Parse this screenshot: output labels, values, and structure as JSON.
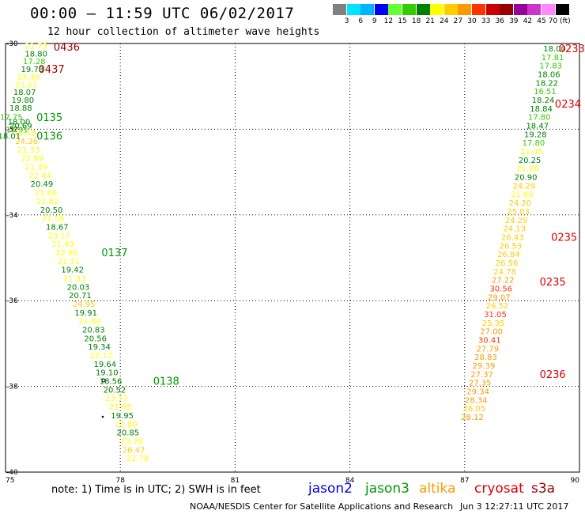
{
  "header": {
    "title": "00:00 – 11:59 UTC 06/02/2017",
    "subtitle": "12 hour collection of altimeter wave heights"
  },
  "colorbar": {
    "labels": [
      "3",
      "6",
      "9",
      "12",
      "15",
      "18",
      "21",
      "24",
      "27",
      "30",
      "33",
      "36",
      "39",
      "42",
      "45",
      "70 (ft)"
    ],
    "colors": [
      "#808080",
      "#00e5ff",
      "#00b3ff",
      "#0000ff",
      "#66ff33",
      "#33cc00",
      "#008000",
      "#ffff00",
      "#ffcc00",
      "#ff9900",
      "#ff3300",
      "#cc0000",
      "#990000",
      "#990099",
      "#cc33cc",
      "#ff88ff",
      "#000000"
    ]
  },
  "footer": {
    "note": "note:  1) Time is in UTC;  2) SWH is in feet",
    "legend": [
      {
        "label": "jason2",
        "color": "#0000dd"
      },
      {
        "label": "jason3",
        "color": "#009900"
      },
      {
        "label": "altika",
        "color": "#ff9900"
      },
      {
        "label": "cryosat",
        "color": "#dd0000"
      },
      {
        "label": "s3a",
        "color": "#990000"
      }
    ],
    "credit_left": "NOAA/NESDIS Center for Satellite Applications and Research",
    "credit_right": "Jun  3 12:27:11 UTC 2017"
  },
  "chart_data": {
    "type": "scatter",
    "x_ticks": [
      "75",
      "78",
      "81",
      "84",
      "87",
      "90"
    ],
    "y_ticks": [
      "-30",
      "-32",
      "-34",
      "-36",
      "-38",
      "-40"
    ],
    "xlim": [
      75,
      90
    ],
    "ylim": [
      -40,
      -30
    ],
    "grid": true,
    "color_scale": {
      "bounds": [
        3,
        6,
        9,
        12,
        15,
        18,
        21,
        24,
        27,
        30,
        33,
        36,
        39,
        42,
        45,
        70
      ],
      "colors": [
        "#808080",
        "#00e5ff",
        "#00b3ff",
        "#0000ff",
        "#66ff33",
        "#33cc00",
        "#008000",
        "#ffff00",
        "#ffcc00",
        "#ff9900",
        "#ff3300",
        "#cc0000",
        "#990000",
        "#990099",
        "#cc33cc",
        "#ff88ff",
        "#000000"
      ]
    },
    "series": [
      {
        "name": "s3a",
        "points": [
          {
            "x": 75.8,
            "y": -30.05,
            "v": 21.73
          },
          {
            "x": 75.8,
            "y": -30.23,
            "v": 18.8
          },
          {
            "x": 75.75,
            "y": -30.41,
            "v": 17.28
          },
          {
            "x": 75.7,
            "y": -30.59,
            "v": 19.73
          },
          {
            "x": 75.6,
            "y": -30.77,
            "v": 23.3
          },
          {
            "x": 75.55,
            "y": -30.95,
            "v": 21.01
          },
          {
            "x": 75.5,
            "y": -31.13,
            "v": 18.07
          },
          {
            "x": 75.45,
            "y": -31.31,
            "v": 19.8
          },
          {
            "x": 75.4,
            "y": -31.49,
            "v": 18.88
          }
        ]
      },
      {
        "name": "jason3-a",
        "points": [
          {
            "x": 75.15,
            "y": -31.71,
            "v": 17.75
          },
          {
            "x": 75.35,
            "y": -31.82,
            "v": 18.0
          },
          {
            "x": 75.4,
            "y": -31.91,
            "v": 20.69
          },
          {
            "x": 75.3,
            "y": -32.0,
            "v": 17.91
          },
          {
            "x": 75.5,
            "y": -32.08,
            "v": 21.59
          },
          {
            "x": 75.1,
            "y": -32.15,
            "v": 18.01
          },
          {
            "x": 75.55,
            "y": -32.27,
            "v": 24.36
          },
          {
            "x": 75.6,
            "y": -32.47,
            "v": 21.33
          },
          {
            "x": 75.7,
            "y": -32.67,
            "v": 22.89
          },
          {
            "x": 75.8,
            "y": -32.87,
            "v": 21.39
          },
          {
            "x": 75.9,
            "y": -33.07,
            "v": 22.44
          },
          {
            "x": 75.95,
            "y": -33.27,
            "v": 20.49
          },
          {
            "x": 76.05,
            "y": -33.47,
            "v": 21.6
          },
          {
            "x": 76.1,
            "y": -33.67,
            "v": 21.62
          },
          {
            "x": 76.2,
            "y": -33.87,
            "v": 20.5
          },
          {
            "x": 76.25,
            "y": -34.07,
            "v": 21.56
          },
          {
            "x": 76.35,
            "y": -34.27,
            "v": 18.67
          },
          {
            "x": 76.4,
            "y": -34.47,
            "v": 23.17
          },
          {
            "x": 76.5,
            "y": -34.67,
            "v": 21.49
          },
          {
            "x": 76.6,
            "y": -34.87,
            "v": 22.9
          },
          {
            "x": 76.65,
            "y": -35.07,
            "v": 21.31
          },
          {
            "x": 76.75,
            "y": -35.27,
            "v": 19.42
          },
          {
            "x": 76.8,
            "y": -35.47,
            "v": 21.33
          },
          {
            "x": 76.9,
            "y": -35.67,
            "v": 20.03
          },
          {
            "x": 76.95,
            "y": -35.87,
            "v": 20.71
          },
          {
            "x": 77.05,
            "y": -36.07,
            "v": 24.95
          },
          {
            "x": 77.1,
            "y": -36.27,
            "v": 19.91
          },
          {
            "x": 77.2,
            "y": -36.47,
            "v": 21.8
          },
          {
            "x": 77.3,
            "y": -36.67,
            "v": 20.83
          },
          {
            "x": 77.35,
            "y": -36.87,
            "v": 20.56
          },
          {
            "x": 77.45,
            "y": -37.07,
            "v": 19.34
          },
          {
            "x": 77.5,
            "y": -37.27,
            "v": 22.17
          },
          {
            "x": 77.6,
            "y": -37.47,
            "v": 19.64
          },
          {
            "x": 77.65,
            "y": -37.67,
            "v": 19.1
          },
          {
            "x": 77.75,
            "y": -37.87,
            "v": 18.56
          },
          {
            "x": 77.85,
            "y": -38.07,
            "v": 20.52
          },
          {
            "x": 77.9,
            "y": -38.27,
            "v": 23.37
          },
          {
            "x": 78.0,
            "y": -38.47,
            "v": 21.95
          },
          {
            "x": 78.05,
            "y": -38.67,
            "v": 19.95
          },
          {
            "x": 78.15,
            "y": -38.87,
            "v": 23.8
          },
          {
            "x": 78.2,
            "y": -39.07,
            "v": 20.85
          },
          {
            "x": 78.3,
            "y": -39.27,
            "v": 23.76
          },
          {
            "x": 78.35,
            "y": -39.47,
            "v": 26.47
          },
          {
            "x": 78.45,
            "y": -39.67,
            "v": 22.78
          }
        ]
      },
      {
        "name": "jason3-b",
        "points": [
          {
            "x": 89.35,
            "y": -30.11,
            "v": 18.0
          },
          {
            "x": 89.3,
            "y": -30.31,
            "v": 17.81
          },
          {
            "x": 89.25,
            "y": -30.51,
            "v": 17.83
          },
          {
            "x": 89.2,
            "y": -30.71,
            "v": 18.06
          },
          {
            "x": 89.15,
            "y": -30.91,
            "v": 18.22
          },
          {
            "x": 89.1,
            "y": -31.11,
            "v": 16.51
          },
          {
            "x": 89.05,
            "y": -31.31,
            "v": 18.24
          },
          {
            "x": 89.0,
            "y": -31.51,
            "v": 18.84
          },
          {
            "x": 88.95,
            "y": -31.71,
            "v": 17.8
          },
          {
            "x": 88.9,
            "y": -31.91,
            "v": 18.47
          },
          {
            "x": 88.85,
            "y": -32.11,
            "v": 19.28
          },
          {
            "x": 88.8,
            "y": -32.31,
            "v": 17.8
          },
          {
            "x": 88.75,
            "y": -32.51,
            "v": 21.45
          },
          {
            "x": 88.7,
            "y": -32.71,
            "v": 20.25
          },
          {
            "x": 88.65,
            "y": -32.91,
            "v": 21.66
          },
          {
            "x": 88.6,
            "y": -33.11,
            "v": 20.9
          },
          {
            "x": 88.55,
            "y": -33.31,
            "v": 24.29
          },
          {
            "x": 88.5,
            "y": -33.51,
            "v": 21.0
          },
          {
            "x": 88.45,
            "y": -33.71,
            "v": 24.2
          },
          {
            "x": 88.4,
            "y": -33.91,
            "v": 25.03
          },
          {
            "x": 88.35,
            "y": -34.11,
            "v": 24.29
          },
          {
            "x": 88.3,
            "y": -34.31,
            "v": 24.13
          },
          {
            "x": 88.25,
            "y": -34.51,
            "v": 26.43
          },
          {
            "x": 88.2,
            "y": -34.71,
            "v": 26.53
          },
          {
            "x": 88.15,
            "y": -34.91,
            "v": 26.84
          },
          {
            "x": 88.1,
            "y": -35.11,
            "v": 26.56
          },
          {
            "x": 88.05,
            "y": -35.31,
            "v": 24.78
          }
        ]
      },
      {
        "name": "cryosat",
        "points": [
          {
            "x": 88.0,
            "y": -35.51,
            "v": 27.22
          },
          {
            "x": 87.95,
            "y": -35.71,
            "v": 30.56
          },
          {
            "x": 87.9,
            "y": -35.91,
            "v": 29.07
          },
          {
            "x": 87.85,
            "y": -36.11,
            "v": 26.52
          },
          {
            "x": 87.8,
            "y": -36.31,
            "v": 31.05
          },
          {
            "x": 87.75,
            "y": -36.51,
            "v": 25.35
          },
          {
            "x": 87.7,
            "y": -36.71,
            "v": 27.0
          },
          {
            "x": 87.65,
            "y": -36.91,
            "v": 30.41
          },
          {
            "x": 87.6,
            "y": -37.11,
            "v": 27.79
          },
          {
            "x": 87.55,
            "y": -37.31,
            "v": 28.83
          },
          {
            "x": 87.5,
            "y": -37.51,
            "v": 29.39
          },
          {
            "x": 87.45,
            "y": -37.71,
            "v": 27.37
          },
          {
            "x": 87.4,
            "y": -37.91,
            "v": 27.35
          },
          {
            "x": 87.35,
            "y": -38.11,
            "v": 29.34
          },
          {
            "x": 87.3,
            "y": -38.31,
            "v": 28.34
          },
          {
            "x": 87.25,
            "y": -38.51,
            "v": 26.05
          },
          {
            "x": 87.2,
            "y": -38.71,
            "v": 28.12
          }
        ]
      }
    ],
    "time_labels": [
      {
        "x": 76.6,
        "y": -30.07,
        "text": "0436",
        "color": "#990000"
      },
      {
        "x": 76.2,
        "y": -30.59,
        "text": "0437",
        "color": "#990000"
      },
      {
        "x": 76.15,
        "y": -31.72,
        "text": "0135",
        "color": "#009900"
      },
      {
        "x": 76.15,
        "y": -32.15,
        "text": "0136",
        "color": "#009900"
      },
      {
        "x": 77.85,
        "y": -34.87,
        "text": "0137",
        "color": "#009900"
      },
      {
        "x": 79.2,
        "y": -37.87,
        "text": "0138",
        "color": "#009900"
      },
      {
        "x": 89.8,
        "y": -30.11,
        "text": "0233",
        "color": "#dd0000"
      },
      {
        "x": 89.7,
        "y": -31.4,
        "text": "0234",
        "color": "#dd0000"
      },
      {
        "x": 89.6,
        "y": -34.51,
        "text": "0235",
        "color": "#dd0000"
      },
      {
        "x": 89.3,
        "y": -35.55,
        "text": "0235",
        "color": "#dd0000"
      },
      {
        "x": 89.3,
        "y": -37.71,
        "text": "0236",
        "color": "#dd0000"
      }
    ]
  }
}
